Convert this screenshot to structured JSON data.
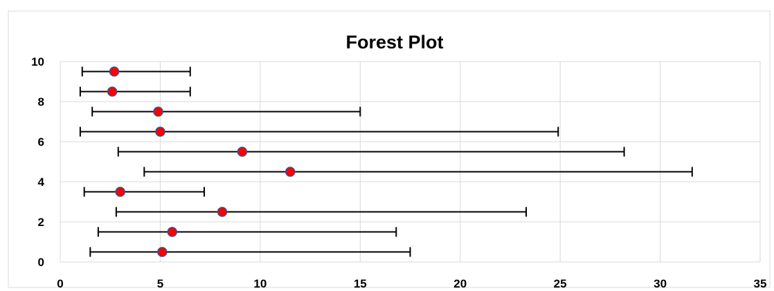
{
  "chart_data": {
    "type": "scatter",
    "title": "Forest Plot",
    "xlabel": "",
    "ylabel": "",
    "xlim": [
      0,
      35
    ],
    "ylim": [
      0,
      10
    ],
    "x_ticks": [
      0,
      5,
      10,
      15,
      20,
      25,
      30,
      35
    ],
    "y_ticks": [
      0,
      2,
      4,
      6,
      8,
      10
    ],
    "grid": true,
    "legend": "none",
    "marker_color": "#ff0000",
    "marker_edge_color": "#2f5597",
    "error_bar_color": "#000000",
    "series": [
      {
        "points": [
          {
            "x": 5.1,
            "y": 0.5,
            "lower": 1.5,
            "upper": 17.5
          },
          {
            "x": 5.6,
            "y": 1.5,
            "lower": 1.9,
            "upper": 16.8
          },
          {
            "x": 8.1,
            "y": 2.5,
            "lower": 2.8,
            "upper": 23.3
          },
          {
            "x": 3.0,
            "y": 3.5,
            "lower": 1.2,
            "upper": 7.2
          },
          {
            "x": 11.5,
            "y": 4.5,
            "lower": 4.2,
            "upper": 31.6
          },
          {
            "x": 9.1,
            "y": 5.5,
            "lower": 2.9,
            "upper": 28.2
          },
          {
            "x": 5.0,
            "y": 6.5,
            "lower": 1.0,
            "upper": 24.9
          },
          {
            "x": 4.9,
            "y": 7.5,
            "lower": 1.6,
            "upper": 15.0
          },
          {
            "x": 2.6,
            "y": 8.5,
            "lower": 1.0,
            "upper": 6.5
          },
          {
            "x": 2.7,
            "y": 9.5,
            "lower": 1.1,
            "upper": 6.5
          }
        ]
      }
    ]
  }
}
